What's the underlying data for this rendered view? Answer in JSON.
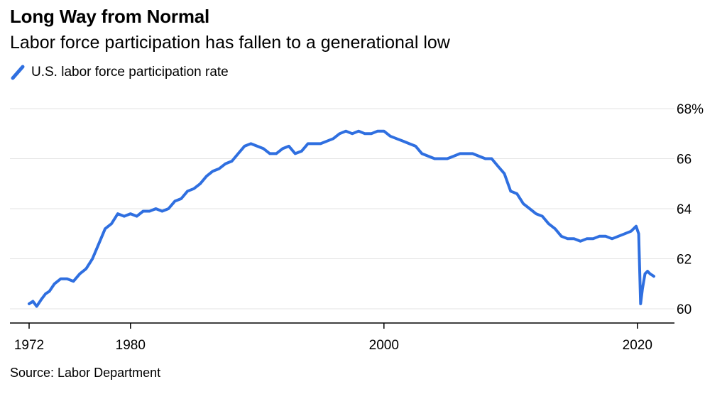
{
  "header": {
    "title": "Long Way from Normal",
    "subtitle": "Labor force participation has fallen to a generational low"
  },
  "legend": {
    "label": "U.S. labor force participation rate",
    "color": "#2f6fe0"
  },
  "source": "Source: Labor Department",
  "chart_data": {
    "type": "line",
    "title": "Long Way from Normal",
    "subtitle": "Labor force participation has fallen to a generational low",
    "xlabel": "",
    "ylabel": "",
    "xlim": [
      1972,
      2021.3
    ],
    "ylim": [
      59.5,
      68
    ],
    "grid": true,
    "y_axis_side": "right",
    "legend_position": "top-left",
    "x_ticks": [
      1972,
      1980,
      2000,
      2020
    ],
    "x_tick_labels": [
      "1972",
      "1980",
      "2000",
      "2020"
    ],
    "y_ticks": [
      60,
      62,
      64,
      66,
      68
    ],
    "y_tick_labels": [
      "60",
      "62",
      "64",
      "66",
      "68%"
    ],
    "series": [
      {
        "name": "U.S. labor force participation rate",
        "color": "#2f6fe0",
        "x": [
          1972.0,
          1972.3,
          1972.6,
          1973.0,
          1973.3,
          1973.6,
          1974.0,
          1974.5,
          1975.0,
          1975.5,
          1976.0,
          1976.5,
          1977.0,
          1977.5,
          1978.0,
          1978.5,
          1979.0,
          1979.5,
          1980.0,
          1980.5,
          1981.0,
          1981.5,
          1982.0,
          1982.5,
          1983.0,
          1983.5,
          1984.0,
          1984.5,
          1985.0,
          1985.5,
          1986.0,
          1986.5,
          1987.0,
          1987.5,
          1988.0,
          1988.5,
          1989.0,
          1989.5,
          1990.0,
          1990.5,
          1991.0,
          1991.5,
          1992.0,
          1992.5,
          1993.0,
          1993.5,
          1994.0,
          1994.5,
          1995.0,
          1995.5,
          1996.0,
          1996.5,
          1997.0,
          1997.5,
          1998.0,
          1998.5,
          1999.0,
          1999.5,
          2000.0,
          2000.5,
          2001.0,
          2001.5,
          2002.0,
          2002.5,
          2003.0,
          2003.5,
          2004.0,
          2004.5,
          2005.0,
          2005.5,
          2006.0,
          2006.5,
          2007.0,
          2007.5,
          2008.0,
          2008.5,
          2009.0,
          2009.5,
          2010.0,
          2010.5,
          2011.0,
          2011.5,
          2012.0,
          2012.5,
          2013.0,
          2013.5,
          2014.0,
          2014.5,
          2015.0,
          2015.5,
          2016.0,
          2016.5,
          2017.0,
          2017.5,
          2018.0,
          2018.5,
          2019.0,
          2019.5,
          2019.9,
          2020.1,
          2020.25,
          2020.4,
          2020.6,
          2020.8,
          2021.0,
          2021.3
        ],
        "y": [
          60.2,
          60.3,
          60.1,
          60.4,
          60.6,
          60.7,
          61.0,
          61.2,
          61.2,
          61.1,
          61.4,
          61.6,
          62.0,
          62.6,
          63.2,
          63.4,
          63.8,
          63.7,
          63.8,
          63.7,
          63.9,
          63.9,
          64.0,
          63.9,
          64.0,
          64.3,
          64.4,
          64.7,
          64.8,
          65.0,
          65.3,
          65.5,
          65.6,
          65.8,
          65.9,
          66.2,
          66.5,
          66.6,
          66.5,
          66.4,
          66.2,
          66.2,
          66.4,
          66.5,
          66.2,
          66.3,
          66.6,
          66.6,
          66.6,
          66.7,
          66.8,
          67.0,
          67.1,
          67.0,
          67.1,
          67.0,
          67.0,
          67.1,
          67.1,
          66.9,
          66.8,
          66.7,
          66.6,
          66.5,
          66.2,
          66.1,
          66.0,
          66.0,
          66.0,
          66.1,
          66.2,
          66.2,
          66.2,
          66.1,
          66.0,
          66.0,
          65.7,
          65.4,
          64.7,
          64.6,
          64.2,
          64.0,
          63.8,
          63.7,
          63.4,
          63.2,
          62.9,
          62.8,
          62.8,
          62.7,
          62.8,
          62.8,
          62.9,
          62.9,
          62.8,
          62.9,
          63.0,
          63.1,
          63.3,
          63.0,
          60.2,
          60.8,
          61.4,
          61.5,
          61.4,
          61.3
        ]
      }
    ]
  }
}
